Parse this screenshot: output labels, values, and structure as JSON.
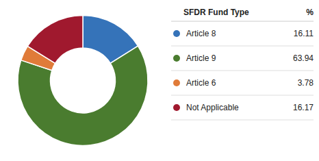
{
  "chart_data": {
    "type": "pie",
    "title": "SFDR Fund Type",
    "categories": [
      "Article 8",
      "Article 9",
      "Article 6",
      "Not Applicable"
    ],
    "values": [
      16.11,
      63.94,
      3.78,
      16.17
    ],
    "colors": [
      "#3573b9",
      "#4a7c2f",
      "#e07b39",
      "#a0192e"
    ],
    "annotations": [
      "%"
    ],
    "data_labels": true,
    "legend": "right"
  }
}
